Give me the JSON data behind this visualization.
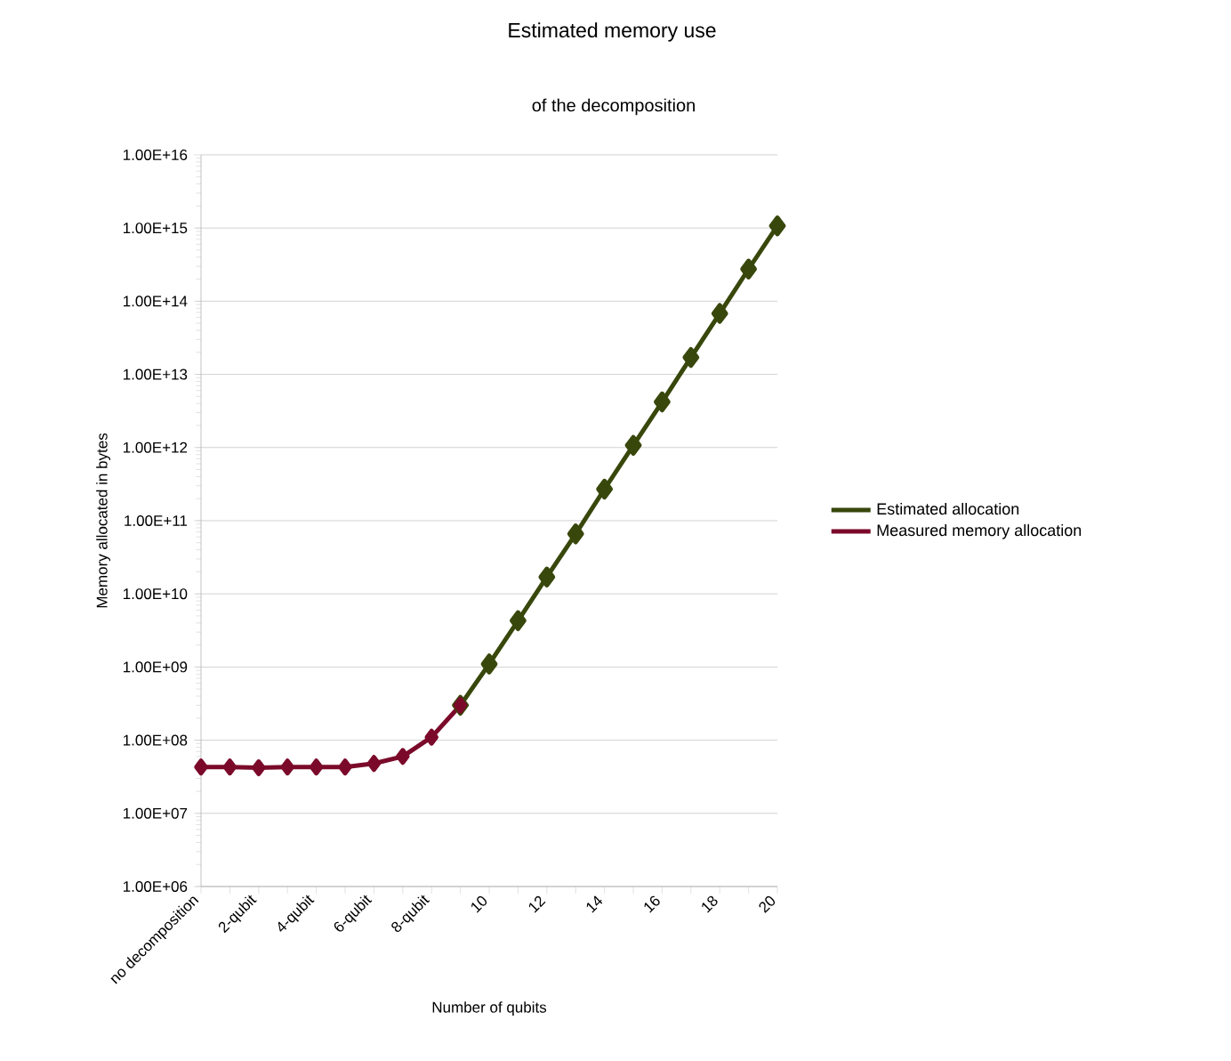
{
  "chart_data": {
    "type": "line",
    "title": "Estimated memory use",
    "subtitle": "of the decomposition",
    "xlabel": "Number of qubits",
    "ylabel": "Memory allocated in bytes",
    "categories": [
      "no decomposition",
      null,
      "2-qubit",
      null,
      "4-qubit",
      null,
      "6-qubit",
      null,
      "8-qubit",
      null,
      "10",
      null,
      "12",
      null,
      "14",
      null,
      "16",
      null,
      "18",
      null,
      "20"
    ],
    "series": [
      {
        "name": "Estimated allocation",
        "color": "#38470b",
        "values": [
          null,
          null,
          null,
          null,
          null,
          null,
          null,
          null,
          null,
          300000000.0,
          1100000000.0,
          4300000000.0,
          17000000000.0,
          66000000000.0,
          270000000000.0,
          1070000000000.0,
          4200000000000.0,
          17000000000000.0,
          68000000000000.0,
          275000000000000.0,
          1070000000000000.0
        ]
      },
      {
        "name": "Measured memory allocation",
        "color": "#7b0a2a",
        "values": [
          43000000.0,
          43000000.0,
          42000000.0,
          43000000.0,
          43000000.0,
          43000000.0,
          48000000.0,
          60000000.0,
          110000000.0,
          300000000.0,
          null,
          null,
          null,
          null,
          null,
          null,
          null,
          null,
          null,
          null,
          null
        ]
      }
    ],
    "log": "y",
    "ylim": [
      1000000.0,
      1e+16
    ],
    "yticks": [
      {
        "value": 1000000.0,
        "label": "1.00E+06"
      },
      {
        "value": 10000000.0,
        "label": "1.00E+07"
      },
      {
        "value": 100000000.0,
        "label": "1.00E+08"
      },
      {
        "value": 1000000000.0,
        "label": "1.00E+09"
      },
      {
        "value": 10000000000.0,
        "label": "1.00E+10"
      },
      {
        "value": 100000000000.0,
        "label": "1.00E+11"
      },
      {
        "value": 1000000000000.0,
        "label": "1.00E+12"
      },
      {
        "value": 10000000000000.0,
        "label": "1.00E+13"
      },
      {
        "value": 100000000000000.0,
        "label": "1.00E+14"
      },
      {
        "value": 1000000000000000.0,
        "label": "1.00E+15"
      },
      {
        "value": 1e+16,
        "label": "1.00E+16"
      }
    ],
    "grid": "y",
    "legend": "right",
    "marker": "diamond",
    "line_style": "solid"
  }
}
